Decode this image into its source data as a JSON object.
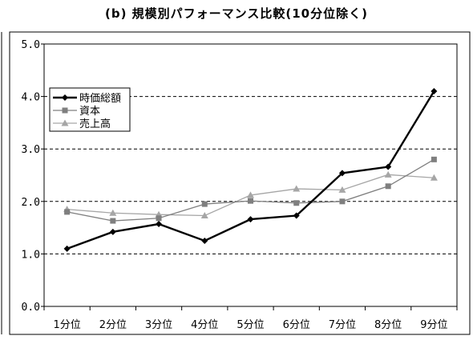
{
  "title": "(b) 規模別パフォーマンス比較(10分位除く)",
  "chart_data": {
    "type": "line",
    "title": "(b) 規模別パフォーマンス比較(10分位除く)",
    "categories": [
      "1分位",
      "2分位",
      "3分位",
      "4分位",
      "5分位",
      "6分位",
      "7分位",
      "8分位",
      "9分位"
    ],
    "ylim": [
      0,
      5
    ],
    "yticks": [
      "0.0",
      "1.0",
      "2.0",
      "3.0",
      "4.0",
      "5.0"
    ],
    "grid": "horizontal dashed",
    "legend_position": "top-left",
    "series": [
      {
        "name": "時価総額",
        "color": "#000000",
        "marker": "diamond",
        "values": [
          1.1,
          1.42,
          1.57,
          1.25,
          1.66,
          1.73,
          2.54,
          2.66,
          4.1
        ]
      },
      {
        "name": "資本",
        "color": "#7f7f7f",
        "marker": "square",
        "values": [
          1.8,
          1.63,
          1.68,
          1.95,
          2.01,
          1.97,
          2.0,
          2.29,
          2.8
        ]
      },
      {
        "name": "売上高",
        "color": "#a6a6a6",
        "marker": "triangle",
        "values": [
          1.85,
          1.78,
          1.75,
          1.73,
          2.12,
          2.24,
          2.22,
          2.51,
          2.45
        ]
      }
    ]
  }
}
